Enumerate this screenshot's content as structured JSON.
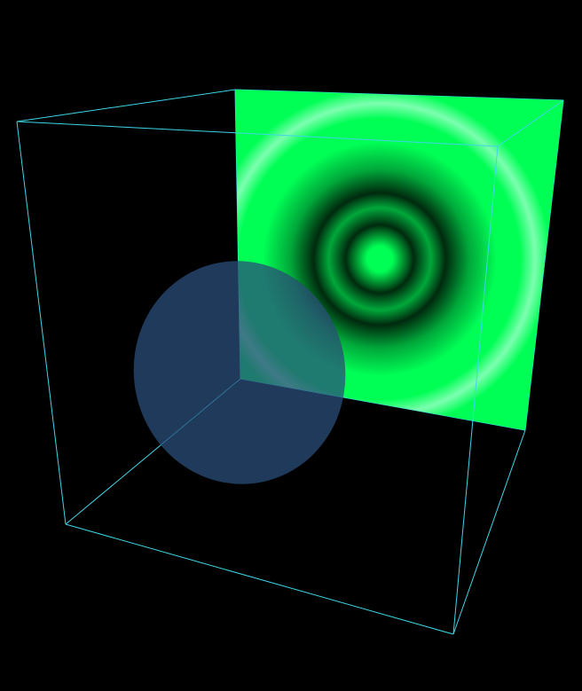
{
  "scene": {
    "background_color": "#000000",
    "edge_color": "#3fd6e6",
    "screen": {
      "colors": {
        "bright": "#00ff55",
        "mid": "#00a83a",
        "dark": "#002a0e",
        "highlight": "#7dffb0"
      }
    },
    "disc": {
      "color": "#2a4e78",
      "opacity": 0.75
    }
  }
}
